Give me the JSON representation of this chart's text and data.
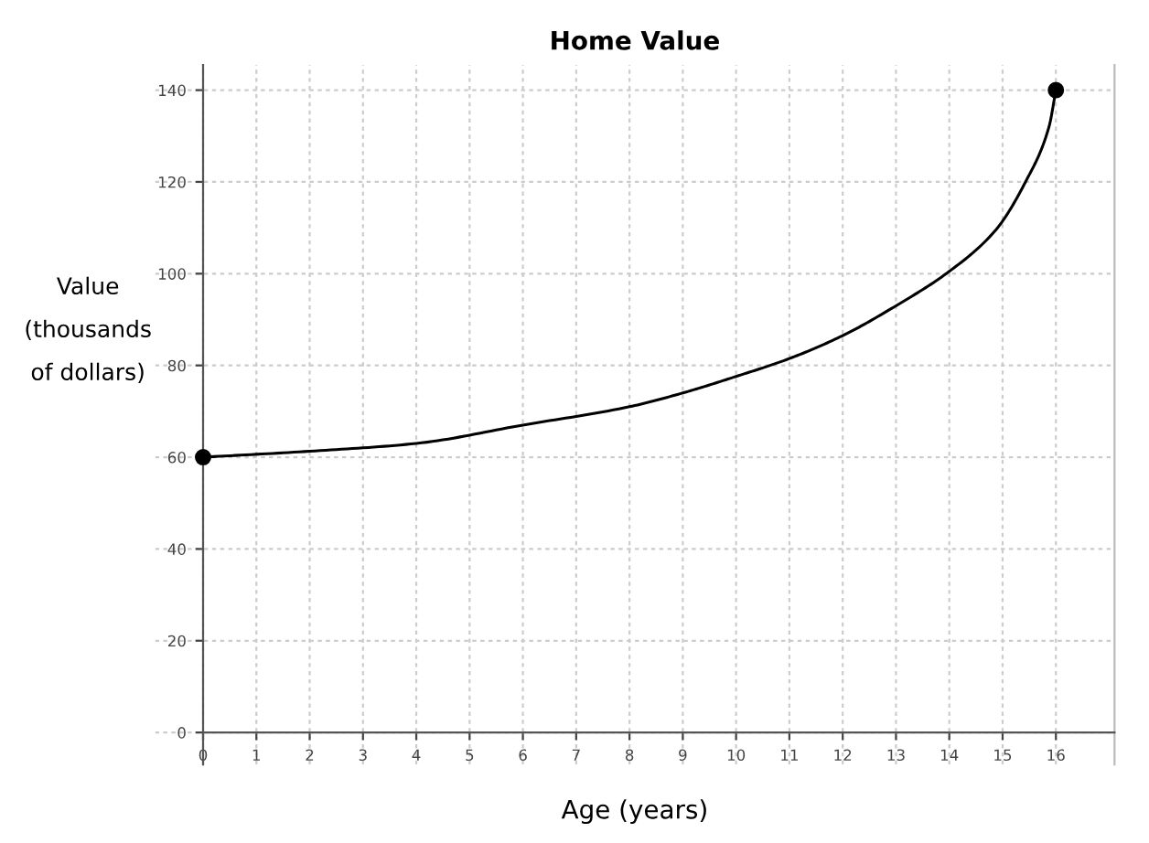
{
  "chart_data": {
    "type": "line",
    "title": "Home Value",
    "xlabel": "Age (years)",
    "ylabel": "Value\n(thousands\nof dollars)",
    "xlim": [
      -0.9,
      17.1
    ],
    "ylim": [
      -7,
      145.5
    ],
    "xticks": [
      0,
      1,
      2,
      3,
      4,
      5,
      6,
      7,
      8,
      9,
      10,
      11,
      12,
      13,
      14,
      15,
      16
    ],
    "yticks": [
      0,
      20,
      40,
      60,
      80,
      100,
      120,
      140
    ],
    "grid": true,
    "series": [
      {
        "color": "#000000",
        "x": [
          0,
          2,
          4,
          6,
          8,
          9,
          10,
          11,
          12,
          13,
          14,
          14.87,
          15.43,
          15.87,
          16
        ],
        "values": [
          60,
          61.3,
          63,
          67,
          71,
          74,
          77.6,
          81.5,
          86.5,
          93,
          100.5,
          109.5,
          120,
          132,
          140
        ]
      },
      {
        "type": "scatter",
        "color": "#000000",
        "marker": "circle",
        "x": [
          0,
          16
        ],
        "values": [
          60,
          140
        ]
      }
    ]
  }
}
